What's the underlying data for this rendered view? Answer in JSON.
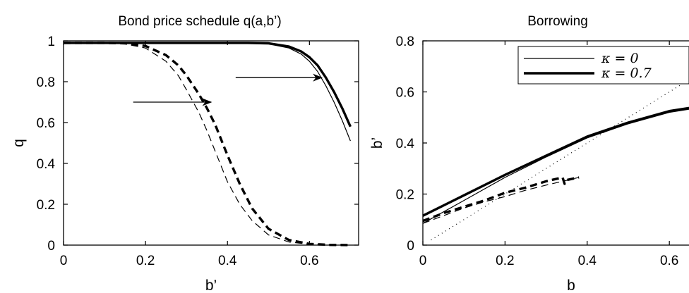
{
  "colors": {
    "line": "#000000",
    "background": "#ffffff"
  },
  "chart_data": [
    {
      "type": "line",
      "title": "Bond price schedule q(a,b’)",
      "xlabel": "b’",
      "ylabel": "q",
      "xlim": [
        0,
        0.72
      ],
      "ylim": [
        0,
        1
      ],
      "xticks": [
        "0",
        "0.2",
        "0.4",
        "0.6"
      ],
      "yticks": [
        "0",
        "0.2",
        "0.4",
        "0.6",
        "0.8",
        "1"
      ],
      "grid": false,
      "series": [
        {
          "style": "solid-thin",
          "x": [
            0,
            0.1,
            0.2,
            0.3,
            0.4,
            0.45,
            0.5,
            0.55,
            0.58,
            0.6,
            0.62,
            0.64,
            0.66,
            0.68,
            0.7
          ],
          "y": [
            0.99,
            0.99,
            0.99,
            0.99,
            0.99,
            0.989,
            0.985,
            0.965,
            0.935,
            0.9,
            0.85,
            0.78,
            0.7,
            0.61,
            0.51
          ]
        },
        {
          "style": "solid-thick",
          "x": [
            0,
            0.1,
            0.2,
            0.3,
            0.4,
            0.45,
            0.5,
            0.55,
            0.58,
            0.6,
            0.62,
            0.64,
            0.66,
            0.68,
            0.7
          ],
          "y": [
            0.99,
            0.99,
            0.99,
            0.99,
            0.99,
            0.99,
            0.988,
            0.972,
            0.948,
            0.92,
            0.88,
            0.82,
            0.75,
            0.67,
            0.58
          ]
        },
        {
          "style": "dashed-thin",
          "x": [
            0,
            0.1,
            0.15,
            0.2,
            0.25,
            0.28,
            0.3,
            0.33,
            0.35,
            0.37,
            0.4,
            0.43,
            0.46,
            0.5,
            0.55,
            0.6,
            0.65,
            0.7
          ],
          "y": [
            0.99,
            0.99,
            0.985,
            0.965,
            0.9,
            0.83,
            0.76,
            0.65,
            0.56,
            0.46,
            0.31,
            0.2,
            0.12,
            0.05,
            0.015,
            0.004,
            0.001,
            0.0
          ]
        },
        {
          "style": "dashed-thick",
          "x": [
            0,
            0.1,
            0.15,
            0.2,
            0.25,
            0.28,
            0.3,
            0.33,
            0.35,
            0.37,
            0.4,
            0.43,
            0.46,
            0.5,
            0.55,
            0.6,
            0.65,
            0.7
          ],
          "y": [
            0.99,
            0.99,
            0.988,
            0.975,
            0.93,
            0.88,
            0.83,
            0.74,
            0.67,
            0.59,
            0.44,
            0.3,
            0.18,
            0.08,
            0.025,
            0.006,
            0.001,
            0.0
          ]
        }
      ],
      "annotations": [
        {
          "type": "arrow",
          "from": [
            0.42,
            0.82
          ],
          "to": [
            0.63,
            0.82
          ]
        },
        {
          "type": "arrow",
          "from": [
            0.17,
            0.7
          ],
          "to": [
            0.36,
            0.7
          ]
        }
      ]
    },
    {
      "type": "line",
      "title": "Borrowing",
      "xlabel": "b",
      "ylabel": "b’",
      "xlim": [
        0,
        0.72
      ],
      "ylim": [
        0,
        0.8
      ],
      "xticks": [
        "0",
        "0.2",
        "0.4",
        "0.6"
      ],
      "yticks": [
        "0",
        "0.2",
        "0.4",
        "0.6",
        "0.8"
      ],
      "grid": false,
      "legend": {
        "position": "top-right",
        "entries": [
          "κ = 0",
          "κ = 0.7"
        ]
      },
      "series": [
        {
          "name": "κ = 0",
          "style": "solid-thin",
          "x": [
            0,
            0.1,
            0.2,
            0.3,
            0.4,
            0.5,
            0.6,
            0.72
          ],
          "y": [
            0.085,
            0.175,
            0.265,
            0.345,
            0.42,
            0.475,
            0.52,
            0.55
          ]
        },
        {
          "name": "κ = 0.7",
          "style": "solid-thick",
          "x": [
            0,
            0.1,
            0.2,
            0.3,
            0.4,
            0.5,
            0.6,
            0.72
          ],
          "y": [
            0.115,
            0.195,
            0.275,
            0.35,
            0.425,
            0.48,
            0.525,
            0.555
          ]
        },
        {
          "style": "dashed-thin",
          "x": [
            0,
            0.05,
            0.1,
            0.15,
            0.2,
            0.25,
            0.3,
            0.34,
            0.38
          ],
          "y": [
            0.085,
            0.115,
            0.145,
            0.17,
            0.19,
            0.215,
            0.235,
            0.25,
            0.265
          ]
        },
        {
          "style": "dashed-thick",
          "x": [
            0,
            0.05,
            0.1,
            0.15,
            0.2,
            0.25,
            0.3,
            0.34,
            0.345,
            0.35,
            0.38
          ],
          "y": [
            0.095,
            0.125,
            0.15,
            0.175,
            0.205,
            0.225,
            0.25,
            0.265,
            0.24,
            0.255,
            0.265
          ]
        },
        {
          "style": "dotted",
          "x": [
            0.02,
            0.72
          ],
          "y": [
            0.02,
            0.72
          ]
        }
      ]
    }
  ]
}
